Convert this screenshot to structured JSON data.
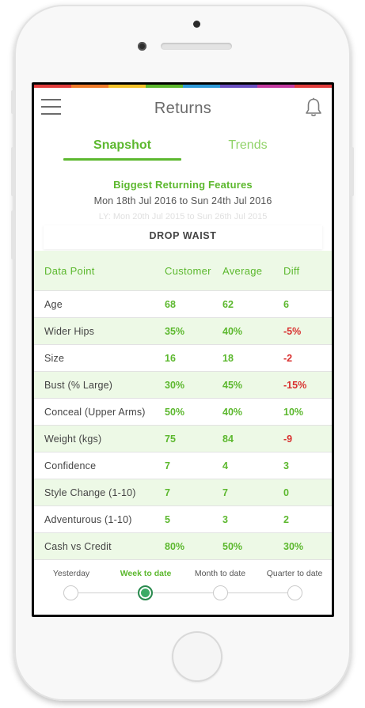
{
  "header": {
    "title": "Returns"
  },
  "tabs": {
    "snapshot": "Snapshot",
    "trends": "Trends"
  },
  "summary": {
    "heading": "Biggest Returning Features",
    "period": "Mon 18th Jul 2016 to Sun 24th Jul 2016",
    "last_year": "LY: Mon 20th Jul 2015 to Sun 26th Jul 2015",
    "feature": "DROP WAIST"
  },
  "table": {
    "columns": [
      "Data Point",
      "Customer",
      "Average",
      "Diff"
    ],
    "rows": [
      [
        "Age",
        "68",
        "62",
        "6"
      ],
      [
        "Wider Hips",
        "35%",
        "40%",
        "-5%"
      ],
      [
        "Size",
        "16",
        "18",
        "-2"
      ],
      [
        "Bust (% Large)",
        "30%",
        "45%",
        "-15%"
      ],
      [
        "Conceal (Upper Arms)",
        "50%",
        "40%",
        "10%"
      ],
      [
        "Weight (kgs)",
        "75",
        "84",
        "-9"
      ],
      [
        "Confidence",
        "7",
        "4",
        "3"
      ],
      [
        "Style Change (1-10)",
        "7",
        "7",
        "0"
      ],
      [
        "Adventurous (1-10)",
        "5",
        "3",
        "2"
      ],
      [
        "Cash vs Credit",
        "80%",
        "50%",
        "30%"
      ]
    ]
  },
  "periods": {
    "items": [
      "Yesterday",
      "Week to date",
      "Month to date",
      "Quarter to date"
    ],
    "selected": "Week to date"
  },
  "colors": {
    "accent": "#5cb82e",
    "negative": "#d9302f",
    "row_tint": "#edf9e6",
    "selected_dot": "#3cab66"
  },
  "icons": {
    "menu": "hamburger-icon",
    "notifications": "bell-icon"
  }
}
